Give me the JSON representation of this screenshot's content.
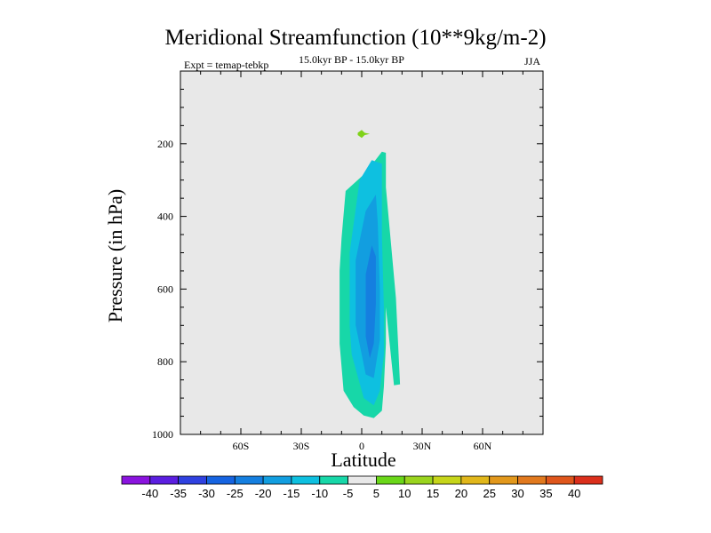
{
  "chart_data": {
    "type": "filled-contour",
    "title": "Meridional Streamfunction (10**9kg/m-2)",
    "left_label": "Expt = temap-tebkp",
    "center_label": "15.0kyr BP - 15.0kyr BP",
    "right_label": "JJA",
    "xlabel": "Latitude",
    "ylabel": "Pressure (in hPa)",
    "xlim": [
      -90,
      90
    ],
    "ylim": [
      1000,
      0
    ],
    "x_ticks": [
      {
        "value": -60,
        "label": "60S"
      },
      {
        "value": -30,
        "label": "30S"
      },
      {
        "value": 0,
        "label": "0"
      },
      {
        "value": 30,
        "label": "30N"
      },
      {
        "value": 60,
        "label": "60N"
      }
    ],
    "y_ticks": [
      {
        "value": 200,
        "label": "200"
      },
      {
        "value": 400,
        "label": "400"
      },
      {
        "value": 600,
        "label": "600"
      },
      {
        "value": 800,
        "label": "800"
      },
      {
        "value": 1000,
        "label": "1000"
      }
    ],
    "regions": [
      {
        "name": "positive-cell",
        "level": 5,
        "color": "#7fd219",
        "points": [
          [
            -2,
            170
          ],
          [
            0,
            162
          ],
          [
            1.5,
            170
          ],
          [
            4,
            173
          ],
          [
            1.5,
            176
          ],
          [
            0,
            184
          ],
          [
            -2,
            176
          ]
        ]
      },
      {
        "name": "contour-minus-5",
        "level": -5,
        "color": "#17d7a8",
        "points": [
          [
            -10,
            460
          ],
          [
            -8,
            330
          ],
          [
            2,
            280
          ],
          [
            10,
            222
          ],
          [
            12,
            225
          ],
          [
            12,
            320
          ],
          [
            17,
            625
          ],
          [
            19,
            862
          ],
          [
            16,
            865
          ],
          [
            12,
            650
          ],
          [
            12,
            750
          ],
          [
            11,
            870
          ],
          [
            10,
            935
          ],
          [
            6,
            955
          ],
          [
            1,
            948
          ],
          [
            -4,
            925
          ],
          [
            -9,
            880
          ],
          [
            -11,
            750
          ],
          [
            -11,
            550
          ]
        ]
      },
      {
        "name": "contour-minus-10",
        "level": -10,
        "color": "#0ec0e0",
        "points": [
          [
            -6,
            700
          ],
          [
            -6,
            500
          ],
          [
            -1,
            300
          ],
          [
            5,
            245
          ],
          [
            10,
            255
          ],
          [
            10,
            450
          ],
          [
            11,
            650
          ],
          [
            11,
            780
          ],
          [
            9,
            880
          ],
          [
            6,
            920
          ],
          [
            1,
            900
          ],
          [
            -2,
            840
          ],
          [
            -5,
            780
          ]
        ]
      },
      {
        "name": "contour-minus-15",
        "level": -15,
        "color": "#129ee0",
        "points": [
          [
            -3,
            700
          ],
          [
            -3,
            520
          ],
          [
            2,
            385
          ],
          [
            7,
            340
          ],
          [
            8,
            420
          ],
          [
            9,
            600
          ],
          [
            9,
            740
          ],
          [
            6,
            845
          ],
          [
            2,
            835
          ],
          [
            0,
            780
          ]
        ]
      },
      {
        "name": "contour-minus-20",
        "level": -20,
        "color": "#157fe0",
        "points": [
          [
            2,
            730
          ],
          [
            2,
            560
          ],
          [
            5,
            480
          ],
          [
            7,
            510
          ],
          [
            7,
            640
          ],
          [
            6,
            750
          ],
          [
            4,
            790
          ]
        ]
      }
    ],
    "colorbar": {
      "levels": [
        "-40",
        "-35",
        "-30",
        "-25",
        "-20",
        "-15",
        "-10",
        "-5",
        "5",
        "10",
        "15",
        "20",
        "25",
        "30",
        "35",
        "40"
      ],
      "colors": [
        "#8a13de",
        "#5b1ee0",
        "#2f41e0",
        "#1664e1",
        "#157fe0",
        "#129ee0",
        "#0ec0e0",
        "#17d7a8",
        "#e8e8e8",
        "#6ad719",
        "#9ad41e",
        "#c6d51a",
        "#e1b71b",
        "#e2981c",
        "#e1791e",
        "#df561c",
        "#db2f1c"
      ]
    }
  }
}
